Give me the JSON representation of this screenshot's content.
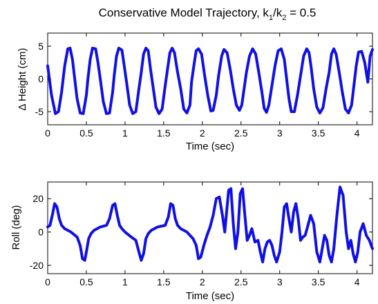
{
  "chart_data": [
    {
      "type": "line",
      "title_parts": {
        "main": "Conservative Model Trajectory, k",
        "sub1": "1",
        "mid": "/k",
        "sub2": "2",
        "end": " = 0.5"
      },
      "xlabel": "Time (sec)",
      "ylabel": "Δ Height (cm)",
      "xlim": [
        0,
        4.2
      ],
      "ylim": [
        -7,
        7
      ],
      "xticks": [
        "0",
        "0.5",
        "1",
        "1.5",
        "2",
        "2.5",
        "3",
        "3.5",
        "4"
      ],
      "yticks": [
        "-5",
        "0",
        "5"
      ],
      "line_color": "#1010e6",
      "series": [
        {
          "x": [
            0,
            0.05,
            0.1,
            0.14,
            0.18,
            0.22,
            0.26,
            0.29,
            0.32,
            0.35,
            0.38,
            0.42,
            0.46,
            0.5,
            0.52,
            0.55,
            0.58,
            0.62,
            0.65,
            0.68,
            0.72,
            0.76,
            0.8,
            0.84,
            0.86,
            0.89,
            0.92,
            0.96,
            0.99,
            1.02,
            1.06,
            1.1,
            1.14,
            1.18,
            1.21,
            1.24,
            1.27,
            1.3,
            1.33,
            1.36,
            1.4,
            1.44,
            1.48,
            1.52,
            1.55,
            1.58,
            1.61,
            1.64,
            1.68,
            1.72,
            1.76,
            1.8,
            1.84,
            1.86,
            1.89,
            1.92,
            1.95,
            1.99,
            2.03,
            2.07,
            2.11,
            2.14,
            2.18,
            2.21,
            2.25,
            2.28,
            2.32,
            2.36,
            2.4,
            2.44,
            2.48,
            2.51,
            2.54,
            2.57,
            2.61,
            2.65,
            2.69,
            2.73,
            2.77,
            2.8,
            2.83,
            2.86,
            2.9,
            2.94,
            2.98,
            3.02,
            3.06,
            3.09,
            3.12,
            3.15,
            3.19,
            3.23,
            3.27,
            3.31,
            3.35,
            3.38,
            3.41,
            3.44,
            3.48,
            3.52,
            3.56,
            3.6,
            3.64,
            3.67,
            3.7,
            3.73,
            3.77,
            3.81,
            3.85,
            3.89,
            3.93,
            3.96,
            3.99,
            4.02,
            4.06,
            4.1,
            4.14,
            4.17,
            4.2
          ],
          "y": [
            2.0,
            -2.5,
            -5.3,
            -5.0,
            -2.0,
            2.0,
            4.6,
            4.7,
            3.0,
            0.0,
            -3.0,
            -5.2,
            -5.3,
            -2.5,
            0.0,
            3.0,
            4.7,
            4.6,
            2.5,
            0.0,
            -3.5,
            -5.3,
            -5.2,
            -2.0,
            0.5,
            3.5,
            4.7,
            4.4,
            2.0,
            -0.5,
            -4.0,
            -5.3,
            -5.0,
            -1.5,
            1.0,
            3.8,
            4.7,
            4.3,
            1.5,
            -1.0,
            -4.3,
            -5.3,
            -4.6,
            -1.0,
            1.5,
            4.0,
            4.7,
            4.0,
            1.0,
            -1.5,
            -4.6,
            -5.2,
            -4.0,
            -0.5,
            2.0,
            4.3,
            4.6,
            3.8,
            0.5,
            -2.5,
            -4.9,
            -4.8,
            -2.5,
            0.5,
            3.5,
            4.5,
            4.0,
            1.5,
            -1.5,
            -4.0,
            -4.8,
            -4.0,
            -1.5,
            1.0,
            3.5,
            4.6,
            3.8,
            1.0,
            -2.0,
            -4.5,
            -5.1,
            -4.0,
            -1.0,
            2.0,
            4.3,
            4.6,
            3.0,
            0.0,
            -3.0,
            -5.0,
            -5.0,
            -2.5,
            0.5,
            3.5,
            4.6,
            4.0,
            1.5,
            -1.5,
            -4.3,
            -5.2,
            -4.4,
            -1.5,
            1.0,
            3.8,
            4.6,
            3.8,
            1.0,
            -2.0,
            -4.6,
            -5.2,
            -4.0,
            -1.0,
            2.0,
            4.1,
            4.2,
            2.5,
            -0.5,
            3.5,
            4.5
          ]
        }
      ]
    },
    {
      "type": "line",
      "xlabel": "Time (sec)",
      "ylabel": "Roll (deg)",
      "xlim": [
        0,
        4.2
      ],
      "ylim": [
        -25,
        30
      ],
      "xticks": [
        "0",
        "0.5",
        "1",
        "1.5",
        "2",
        "2.5",
        "3",
        "3.5",
        "4"
      ],
      "yticks": [
        "-20",
        "0",
        "20"
      ],
      "line_color": "#1010e6",
      "series": [
        {
          "x": [
            0,
            0.03,
            0.06,
            0.09,
            0.12,
            0.15,
            0.18,
            0.22,
            0.3,
            0.38,
            0.42,
            0.45,
            0.48,
            0.5,
            0.53,
            0.56,
            0.6,
            0.68,
            0.76,
            0.8,
            0.84,
            0.87,
            0.9,
            0.93,
            0.96,
            1.0,
            1.08,
            1.14,
            1.18,
            1.21,
            1.24,
            1.27,
            1.3,
            1.34,
            1.42,
            1.52,
            1.56,
            1.59,
            1.62,
            1.65,
            1.68,
            1.72,
            1.8,
            1.88,
            1.92,
            1.95,
            1.98,
            2.02,
            2.06,
            2.1,
            2.14,
            2.18,
            2.22,
            2.26,
            2.29,
            2.31,
            2.34,
            2.37,
            2.4,
            2.43,
            2.46,
            2.49,
            2.52,
            2.55,
            2.58,
            2.61,
            2.64,
            2.68,
            2.72,
            2.75,
            2.78,
            2.81,
            2.84,
            2.87,
            2.9,
            2.93,
            2.96,
            3.0,
            3.03,
            3.06,
            3.09,
            3.12,
            3.15,
            3.18,
            3.21,
            3.24,
            3.27,
            3.3,
            3.33,
            3.36,
            3.4,
            3.44,
            3.48,
            3.52,
            3.55,
            3.58,
            3.61,
            3.64,
            3.67,
            3.7,
            3.74,
            3.78,
            3.82,
            3.86,
            3.89,
            3.92,
            3.95,
            3.98,
            4.01,
            4.04,
            4.08,
            4.12,
            4.16,
            4.2
          ],
          "y": [
            3,
            4,
            10,
            17,
            15,
            8,
            4,
            2,
            0,
            -3,
            -8,
            -16,
            -17,
            -12,
            -4,
            -1,
            1,
            3,
            4,
            8,
            16,
            17,
            10,
            4,
            2,
            0,
            -3,
            -5,
            -12,
            -17,
            -13,
            -4,
            -1,
            1,
            3,
            4,
            9,
            17,
            16,
            8,
            4,
            2,
            0,
            -4,
            -8,
            -16,
            -15,
            -8,
            -2,
            3,
            10,
            20,
            21,
            10,
            0,
            10,
            25,
            26,
            5,
            -10,
            0,
            23,
            26,
            10,
            -5,
            -2,
            2,
            -6,
            -5,
            -12,
            -18,
            -10,
            -6,
            -5,
            -8,
            -14,
            -18,
            -12,
            0,
            15,
            17,
            8,
            0,
            12,
            17,
            8,
            -5,
            -3,
            -2,
            3,
            10,
            5,
            -12,
            -18,
            -10,
            -2,
            -5,
            -14,
            -18,
            -10,
            10,
            27,
            22,
            0,
            -10,
            -5,
            -13,
            -18,
            -12,
            0,
            5,
            -2,
            -5,
            -10
          ]
        }
      ]
    }
  ]
}
